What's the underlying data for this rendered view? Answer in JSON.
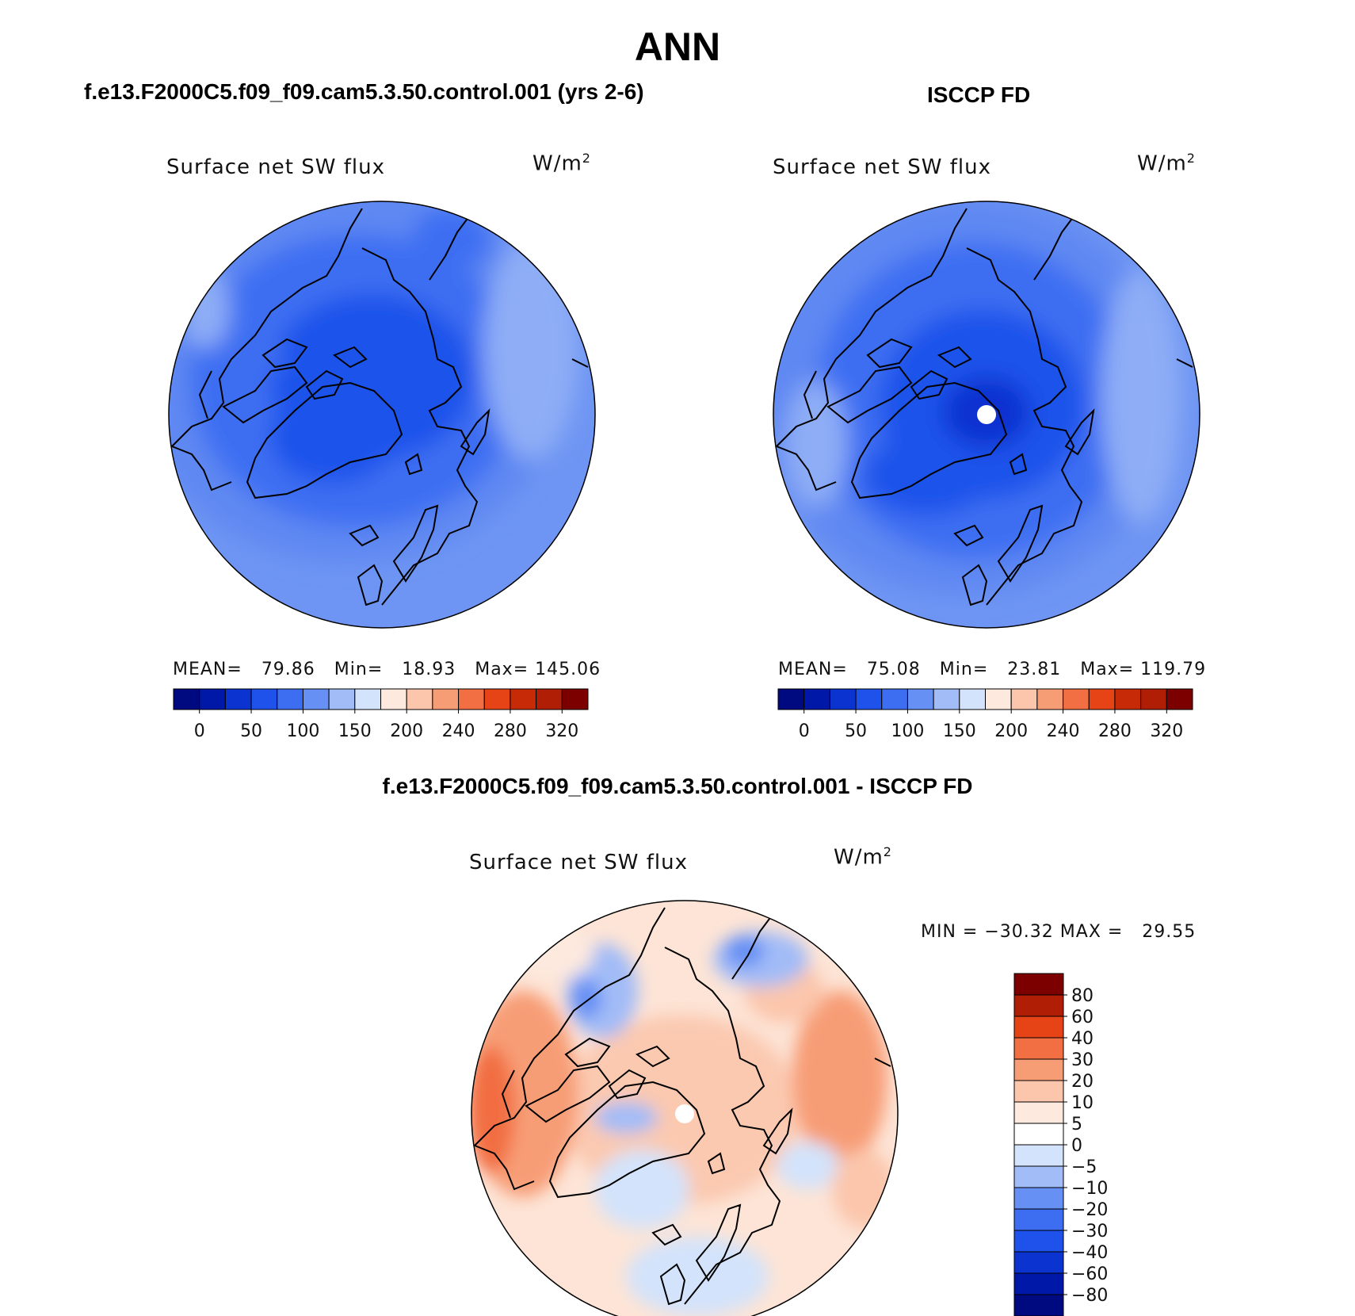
{
  "header": {
    "season": "ANN",
    "left_title": "f.e13.F2000C5.f09_f09.cam5.3.50.control.001 (yrs 2-6)",
    "right_title": "ISCCP FD",
    "diff_title": "f.e13.F2000C5.f09_f09.cam5.3.50.control.001 - ISCCP FD"
  },
  "panels": [
    {
      "variable": "Surface net SW flux",
      "units_base": "W/m",
      "units_exp": "2",
      "stats": {
        "mean_label": "MEAN=",
        "mean": "79.86",
        "min_label": "Min=",
        "min": "18.93",
        "max_label": "Max=",
        "max": "145.06"
      },
      "pole_hole": false
    },
    {
      "variable": "Surface net SW flux",
      "units_base": "W/m",
      "units_exp": "2",
      "stats": {
        "mean_label": "MEAN=",
        "mean": "75.08",
        "min_label": "Min=",
        "min": "23.81",
        "max_label": "Max=",
        "max": "119.79"
      },
      "pole_hole": true
    }
  ],
  "abs_colorbar": {
    "colors": [
      "#000a80",
      "#0018a8",
      "#0a33d0",
      "#1f52ea",
      "#3d6ef2",
      "#6690f4",
      "#a2bcf7",
      "#d3e3fb",
      "#fde9de",
      "#fbc6ac",
      "#f79d76",
      "#f26e43",
      "#e64417",
      "#c62a06",
      "#b01e06",
      "#7c0000"
    ],
    "labels": [
      "0",
      "50",
      "100",
      "150",
      "200",
      "240",
      "280",
      "320"
    ]
  },
  "diff_panel": {
    "variable": "Surface net SW flux",
    "units_base": "W/m",
    "units_exp": "2",
    "minmax": {
      "min_label": "MIN =",
      "min": "−30.32",
      "max_label": "MAX =",
      "max": "29.55"
    },
    "pole_hole": true
  },
  "diff_colorbar": {
    "colors": [
      "#7c0000",
      "#b01e06",
      "#e64417",
      "#f26e43",
      "#f79d76",
      "#fbc6ac",
      "#fde9de",
      "#ffffff",
      "#d3e3fb",
      "#a2bcf7",
      "#6690f4",
      "#3d6ef2",
      "#1f52ea",
      "#0a33d0",
      "#0018a8",
      "#000a80"
    ],
    "labels": [
      "80",
      "60",
      "40",
      "30",
      "20",
      "10",
      "5",
      "0",
      "−5",
      "−10",
      "−20",
      "−30",
      "−40",
      "−60",
      "−80"
    ]
  }
}
